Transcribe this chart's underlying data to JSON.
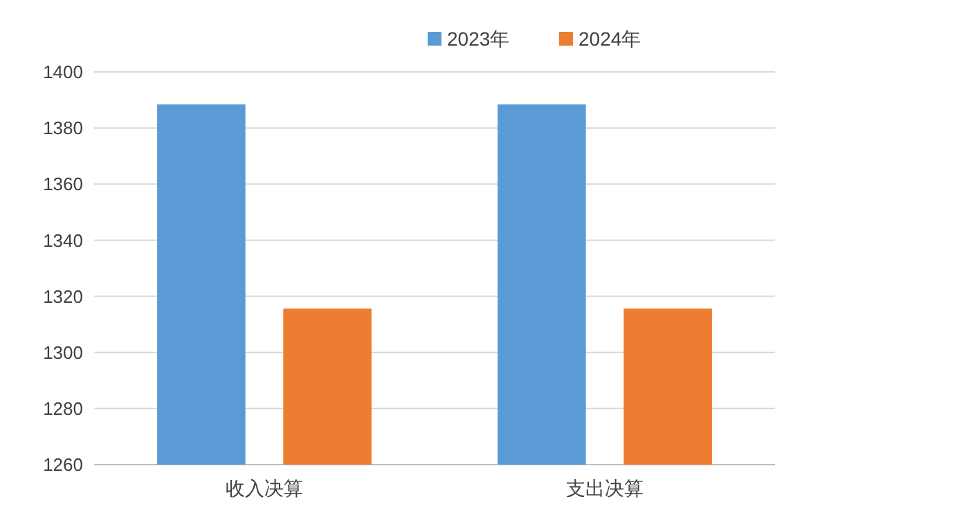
{
  "chart_data": {
    "type": "bar",
    "categories": [
      "收入决算",
      "支出决算"
    ],
    "series": [
      {
        "name": "2023年",
        "color": "#5b9bd5",
        "values": [
          1388.4,
          1388.4
        ]
      },
      {
        "name": "2024年",
        "color": "#ed7d31",
        "values": [
          1315.6,
          1315.6
        ]
      }
    ],
    "ylim": [
      1260,
      1400
    ],
    "yticks": [
      1260,
      1280,
      1300,
      1320,
      1340,
      1360,
      1380,
      1400
    ],
    "grid": "y",
    "legend": "top"
  }
}
